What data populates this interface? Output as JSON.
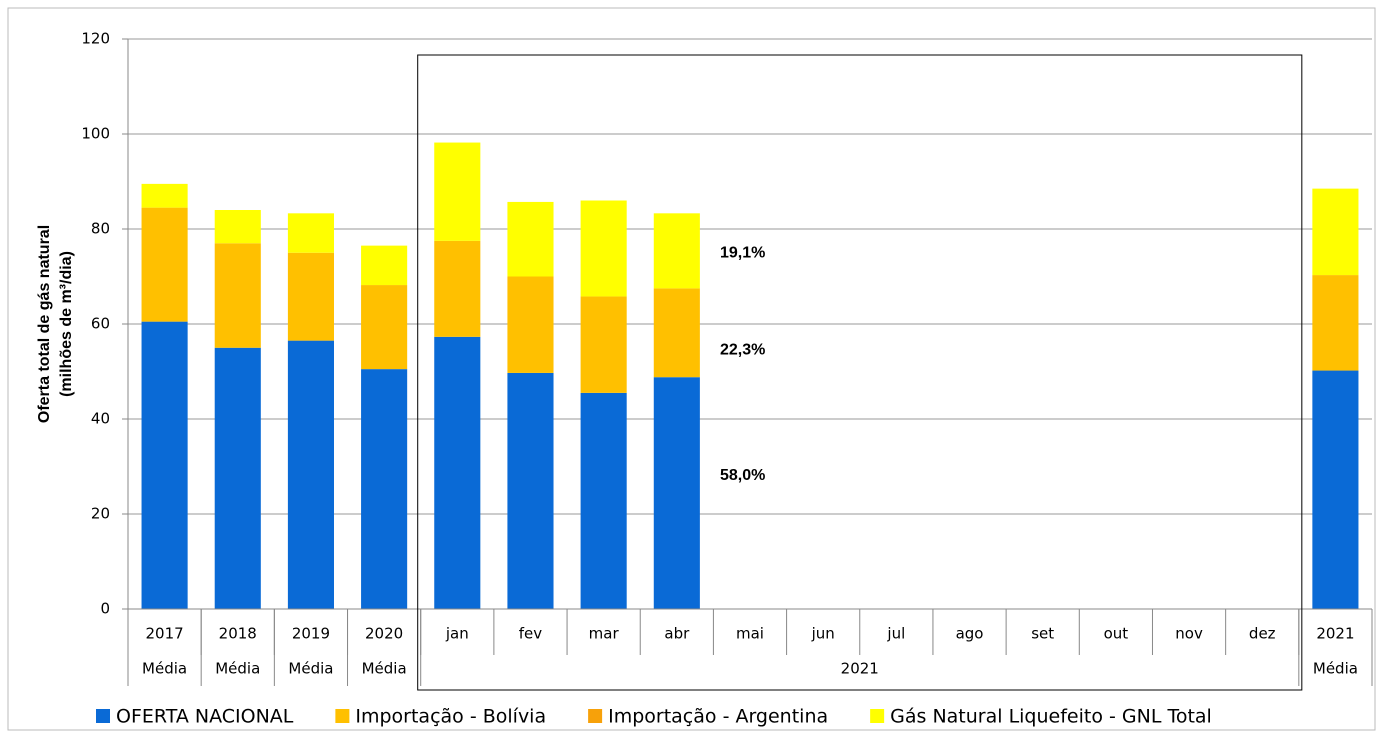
{
  "chart_data": {
    "type": "stacked-bar",
    "y_axis_label": [
      "Oferta total  de gás natural",
      "(milhões de m³/dia)"
    ],
    "categories": [
      "2017",
      "2018",
      "2019",
      "2020",
      "jan",
      "fev",
      "mar",
      "abr",
      "mai",
      "jun",
      "jul",
      "ago",
      "set",
      "out",
      "nov",
      "dez",
      "2021"
    ],
    "group_labels": [
      "Média",
      "Média",
      "Média",
      "Média",
      "2021",
      "Média"
    ],
    "group_sizes": [
      1,
      1,
      1,
      1,
      12,
      1
    ],
    "series": [
      {
        "name": "OFERTA NACIONAL",
        "color": "#0a6ad6",
        "values": [
          60.5,
          55.0,
          56.5,
          50.5,
          57.3,
          49.7,
          45.5,
          48.8,
          null,
          null,
          null,
          null,
          null,
          null,
          null,
          null,
          50.2
        ]
      },
      {
        "name": "Importação - Bolívia",
        "color": "#ffc000",
        "values": [
          24.0,
          22.0,
          18.5,
          17.7,
          20.2,
          20.3,
          20.3,
          18.7,
          null,
          null,
          null,
          null,
          null,
          null,
          null,
          null,
          20.1
        ]
      },
      {
        "name": "Importação - Argentina",
        "color": "#f7a10a",
        "values": [
          0,
          0,
          0,
          0,
          0,
          0,
          0,
          0,
          null,
          null,
          null,
          null,
          null,
          null,
          null,
          null,
          0
        ]
      },
      {
        "name": "Gás Natural Liquefeito - GNL Total",
        "color": "#ffff00",
        "values": [
          5.0,
          7.0,
          8.3,
          8.3,
          20.7,
          15.7,
          20.2,
          15.8,
          null,
          null,
          null,
          null,
          null,
          null,
          null,
          null,
          18.2
        ]
      }
    ],
    "annotations": [
      {
        "text": "19,1%",
        "y": 74.9
      },
      {
        "text": "22,3%",
        "y": 54.5
      },
      {
        "text": "58,0%",
        "y": 28.0
      }
    ],
    "ylim": [
      0,
      120
    ],
    "yticks": [
      0,
      20,
      40,
      60,
      80,
      100,
      120
    ],
    "grid": true
  }
}
